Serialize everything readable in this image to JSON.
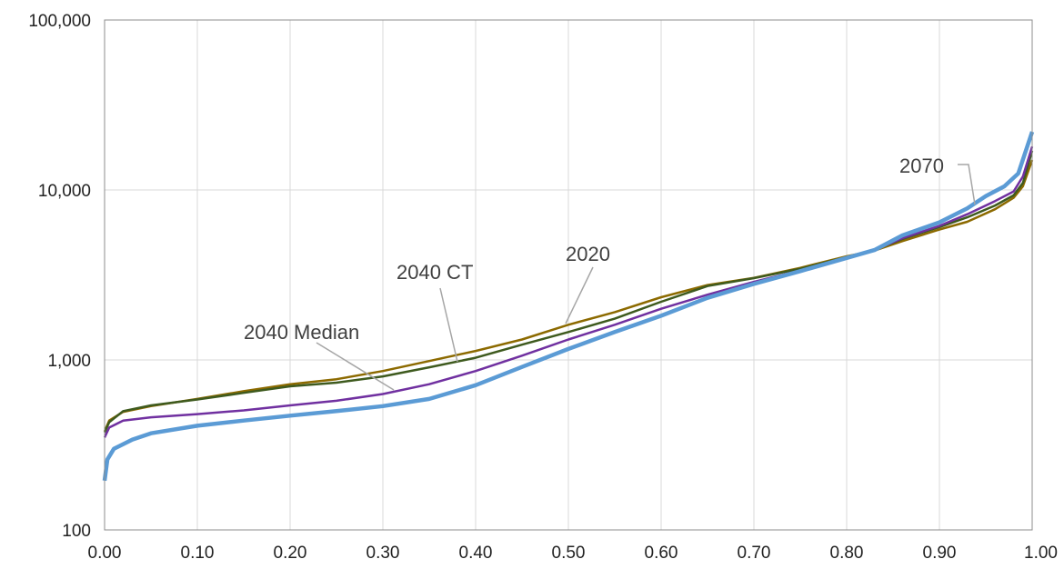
{
  "chart_data": {
    "type": "line",
    "title": "",
    "xlabel": "",
    "ylabel": "",
    "xlim": [
      0,
      1
    ],
    "ylim": [
      100,
      100000
    ],
    "y_scale": "log",
    "grid": true,
    "x_ticks": [
      "0.00",
      "0.10",
      "0.20",
      "0.30",
      "0.40",
      "0.50",
      "0.60",
      "0.70",
      "0.80",
      "0.90",
      "1.00"
    ],
    "y_ticks": [
      "100",
      "1,000",
      "10,000",
      "100,000"
    ],
    "series": [
      {
        "name": "2020",
        "color": "#8C6A00",
        "points": [
          [
            0,
            380
          ],
          [
            0.005,
            440
          ],
          [
            0.02,
            495
          ],
          [
            0.05,
            535
          ],
          [
            0.1,
            590
          ],
          [
            0.15,
            655
          ],
          [
            0.2,
            720
          ],
          [
            0.25,
            770
          ],
          [
            0.3,
            860
          ],
          [
            0.35,
            985
          ],
          [
            0.4,
            1130
          ],
          [
            0.45,
            1320
          ],
          [
            0.5,
            1610
          ],
          [
            0.55,
            1910
          ],
          [
            0.6,
            2340
          ],
          [
            0.65,
            2760
          ],
          [
            0.7,
            3040
          ],
          [
            0.75,
            3480
          ],
          [
            0.8,
            4070
          ],
          [
            0.83,
            4400
          ],
          [
            0.86,
            5000
          ],
          [
            0.9,
            5850
          ],
          [
            0.93,
            6500
          ],
          [
            0.96,
            7700
          ],
          [
            0.98,
            9000
          ],
          [
            0.99,
            10500
          ],
          [
            1.0,
            15000
          ]
        ]
      },
      {
        "name": "2040 CT",
        "color": "#3E5A1E",
        "points": [
          [
            0,
            375
          ],
          [
            0.005,
            430
          ],
          [
            0.02,
            500
          ],
          [
            0.05,
            540
          ],
          [
            0.1,
            585
          ],
          [
            0.15,
            640
          ],
          [
            0.2,
            700
          ],
          [
            0.25,
            735
          ],
          [
            0.3,
            800
          ],
          [
            0.35,
            905
          ],
          [
            0.4,
            1030
          ],
          [
            0.45,
            1230
          ],
          [
            0.5,
            1460
          ],
          [
            0.55,
            1750
          ],
          [
            0.6,
            2200
          ],
          [
            0.65,
            2720
          ],
          [
            0.7,
            3030
          ],
          [
            0.75,
            3440
          ],
          [
            0.8,
            4030
          ],
          [
            0.83,
            4450
          ],
          [
            0.86,
            5150
          ],
          [
            0.9,
            6050
          ],
          [
            0.93,
            6900
          ],
          [
            0.96,
            8100
          ],
          [
            0.98,
            9300
          ],
          [
            0.99,
            11000
          ],
          [
            1.0,
            17000
          ]
        ]
      },
      {
        "name": "2040 Median",
        "color": "#7030A0",
        "points": [
          [
            0,
            350
          ],
          [
            0.005,
            400
          ],
          [
            0.02,
            440
          ],
          [
            0.05,
            460
          ],
          [
            0.1,
            480
          ],
          [
            0.15,
            505
          ],
          [
            0.2,
            540
          ],
          [
            0.25,
            575
          ],
          [
            0.3,
            630
          ],
          [
            0.35,
            720
          ],
          [
            0.4,
            860
          ],
          [
            0.45,
            1060
          ],
          [
            0.5,
            1320
          ],
          [
            0.55,
            1610
          ],
          [
            0.6,
            2000
          ],
          [
            0.65,
            2420
          ],
          [
            0.7,
            2880
          ],
          [
            0.75,
            3360
          ],
          [
            0.8,
            3970
          ],
          [
            0.83,
            4430
          ],
          [
            0.86,
            5200
          ],
          [
            0.9,
            6150
          ],
          [
            0.93,
            7200
          ],
          [
            0.96,
            8600
          ],
          [
            0.98,
            9800
          ],
          [
            0.99,
            12000
          ],
          [
            1.0,
            18000
          ]
        ]
      },
      {
        "name": "2070",
        "color": "#5B9BD5",
        "points": [
          [
            0,
            195
          ],
          [
            0.003,
            260
          ],
          [
            0.01,
            300
          ],
          [
            0.03,
            340
          ],
          [
            0.05,
            370
          ],
          [
            0.1,
            410
          ],
          [
            0.15,
            440
          ],
          [
            0.2,
            470
          ],
          [
            0.25,
            500
          ],
          [
            0.3,
            535
          ],
          [
            0.35,
            590
          ],
          [
            0.4,
            710
          ],
          [
            0.45,
            910
          ],
          [
            0.5,
            1160
          ],
          [
            0.55,
            1460
          ],
          [
            0.6,
            1820
          ],
          [
            0.65,
            2320
          ],
          [
            0.7,
            2800
          ],
          [
            0.75,
            3330
          ],
          [
            0.8,
            3980
          ],
          [
            0.83,
            4430
          ],
          [
            0.86,
            5400
          ],
          [
            0.9,
            6450
          ],
          [
            0.93,
            7800
          ],
          [
            0.95,
            9200
          ],
          [
            0.97,
            10500
          ],
          [
            0.985,
            12500
          ],
          [
            1.0,
            22000
          ]
        ]
      }
    ],
    "annotations": [
      {
        "text": "2020",
        "series": "2020"
      },
      {
        "text": "2040 CT",
        "series": "2040 CT"
      },
      {
        "text": "2040 Median",
        "series": "2040 Median"
      },
      {
        "text": "2070",
        "series": "2070"
      }
    ]
  }
}
